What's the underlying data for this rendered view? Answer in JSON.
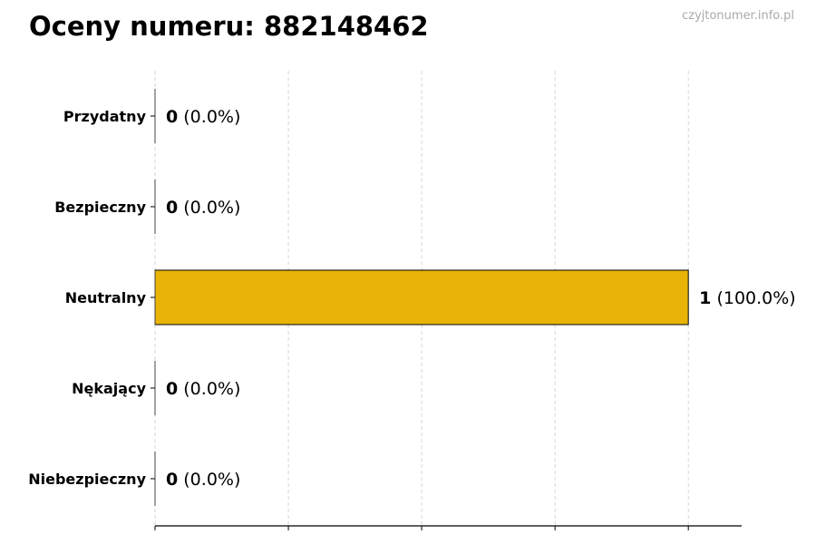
{
  "chart_data": {
    "type": "bar",
    "orientation": "horizontal",
    "title": "Oceny numeru: 882148462",
    "watermark": "czyjtonumer.info.pl",
    "categories": [
      "Przydatny",
      "Bezpieczny",
      "Neutralny",
      "Nękający",
      "Niebezpieczny"
    ],
    "values": [
      0,
      0,
      1,
      0,
      0
    ],
    "data_labels": [
      {
        "count": "0",
        "pct": "(0.0%)"
      },
      {
        "count": "0",
        "pct": "(0.0%)"
      },
      {
        "count": "1",
        "pct": "(100.0%)"
      },
      {
        "count": "0",
        "pct": "(0.0%)"
      },
      {
        "count": "0",
        "pct": "(0.0%)"
      }
    ],
    "xlim": [
      0,
      1.1
    ],
    "xticks": [
      0,
      0.25,
      0.5,
      0.75,
      1.0
    ],
    "grid": "x-dashed",
    "bar_color": "#E8B408",
    "xlabel": "",
    "ylabel": ""
  }
}
